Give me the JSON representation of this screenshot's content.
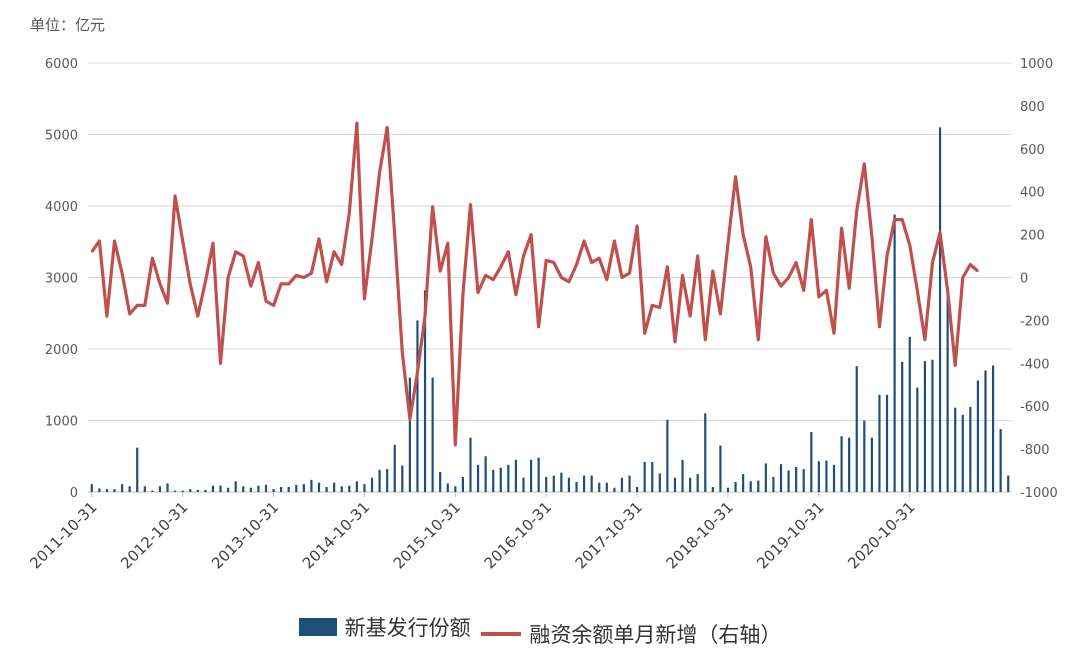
{
  "unit_label": "单位：亿元",
  "colors": {
    "bar": "#1F4E79",
    "line": "#C0504D",
    "grid": "#D9D9D9",
    "axis": "#BFBFBF"
  },
  "chart_data": {
    "type": "bar+line",
    "categories_start": "2011-10-31",
    "x_tick_labels": [
      "2011-10-31",
      "2012-10-31",
      "2013-10-31",
      "2014-10-31",
      "2015-10-31",
      "2016-10-31",
      "2017-10-31",
      "2018-10-31",
      "2019-10-31",
      "2020-10-31"
    ],
    "y_left": {
      "ticks": [
        0,
        1000,
        2000,
        3000,
        4000,
        5000,
        6000
      ],
      "range": [
        0,
        6000
      ]
    },
    "y_right": {
      "ticks": [
        -1000,
        -800,
        -600,
        -400,
        -200,
        0,
        200,
        400,
        600,
        800,
        1000
      ],
      "range": [
        -1000,
        1000
      ]
    },
    "legend": [
      "新基发行份额",
      "融资余额单月新增（右轴）"
    ],
    "series": [
      {
        "name": "新基发行份额",
        "axis": "left",
        "kind": "bar",
        "values": [
          110,
          50,
          40,
          40,
          110,
          80,
          620,
          80,
          20,
          80,
          120,
          20,
          20,
          40,
          30,
          30,
          90,
          90,
          60,
          150,
          80,
          60,
          90,
          100,
          40,
          70,
          70,
          100,
          110,
          170,
          130,
          70,
          130,
          80,
          90,
          150,
          110,
          200,
          310,
          320,
          660,
          370,
          1600,
          2400,
          2820,
          1600,
          280,
          120,
          80,
          210,
          760,
          380,
          500,
          310,
          340,
          380,
          450,
          200,
          450,
          480,
          210,
          230,
          270,
          200,
          140,
          230,
          230,
          130,
          130,
          60,
          200,
          230,
          70,
          420,
          420,
          260,
          1010,
          200,
          450,
          200,
          250,
          1100,
          70,
          650,
          60,
          140,
          250,
          150,
          160,
          400,
          210,
          390,
          300,
          350,
          320,
          840,
          430,
          440,
          380,
          780,
          760,
          1760,
          1000,
          760,
          1360,
          1360,
          3880,
          1820,
          2170,
          1460,
          1830,
          1850,
          5100,
          2750,
          1180,
          1080,
          1190,
          1560,
          1700,
          1770,
          880,
          230
        ]
      },
      {
        "name": "融资余额单月新增（右轴）",
        "axis": "right",
        "kind": "line",
        "values": [
          120,
          170,
          -180,
          170,
          20,
          -170,
          -130,
          -130,
          90,
          -30,
          -120,
          380,
          170,
          -30,
          -180,
          -20,
          160,
          -400,
          0,
          120,
          100,
          -40,
          70,
          -110,
          -130,
          -30,
          -30,
          10,
          0,
          20,
          180,
          -20,
          120,
          60,
          300,
          720,
          -100,
          180,
          490,
          700,
          200,
          -350,
          -660,
          -440,
          -180,
          330,
          30,
          160,
          -780,
          -80,
          340,
          -70,
          10,
          -10,
          50,
          120,
          -80,
          100,
          200,
          -230,
          80,
          70,
          0,
          -20,
          60,
          170,
          70,
          90,
          -10,
          170,
          0,
          20,
          240,
          -260,
          -130,
          -140,
          50,
          -300,
          10,
          -180,
          100,
          -290,
          30,
          -170,
          160,
          470,
          200,
          50,
          -290,
          190,
          20,
          -40,
          0,
          70,
          -60,
          270,
          -90,
          -60,
          -260,
          230,
          -50,
          310,
          530,
          190,
          -230,
          100,
          270,
          270,
          150,
          -60,
          -290,
          70,
          210,
          -60,
          -410,
          0,
          60,
          30
        ]
      }
    ]
  }
}
